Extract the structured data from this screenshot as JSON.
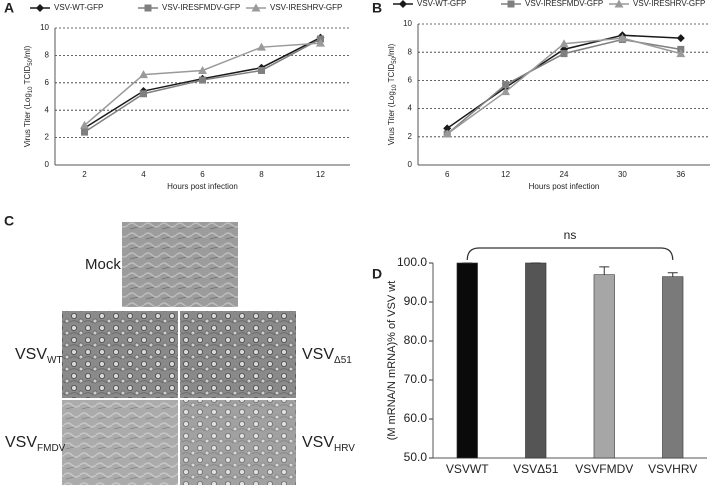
{
  "panel_labels": [
    "A",
    "B",
    "C",
    "D"
  ],
  "micrographs": [
    {
      "base": "Mock"
    },
    {
      "base": "VSV",
      "sub": "WT"
    },
    {
      "base": "VSV",
      "sub": "Δ51"
    },
    {
      "base": "VSV",
      "sub": "FMDV"
    },
    {
      "base": "VSV",
      "sub": "HRV"
    }
  ],
  "chart_data": [
    {
      "type": "line",
      "categories": [
        "2",
        "4",
        "6",
        "8",
        "12"
      ],
      "series": [
        {
          "name": "VSV-WT-GFP",
          "color": "#1a1a1a",
          "marker": "diamond",
          "values": [
            2.7,
            5.4,
            6.3,
            7.1,
            9.3
          ]
        },
        {
          "name": "VSV-IRESFMDV-GFP",
          "color": "#7f7f7f",
          "marker": "square",
          "values": [
            2.4,
            5.2,
            6.2,
            6.9,
            9.2
          ]
        },
        {
          "name": "VSV-IRESHRV-GFP",
          "color": "#9a9a9a",
          "marker": "triangle",
          "values": [
            2.9,
            6.6,
            6.9,
            8.6,
            8.9
          ]
        }
      ],
      "ylim": [
        0,
        10
      ],
      "yticks": [
        0,
        2,
        4,
        6,
        8,
        10
      ],
      "grid": true,
      "xlabel": "Hours post infection",
      "ylabel_parts": [
        "Virus Titer (Log",
        "10",
        " TCID",
        "50",
        "/ml)"
      ]
    },
    {
      "type": "line",
      "categories": [
        "6",
        "12",
        "24",
        "30",
        "36"
      ],
      "series": [
        {
          "name": "VSV-WT-GFP",
          "color": "#1a1a1a",
          "marker": "diamond",
          "values": [
            2.6,
            5.5,
            8.2,
            9.2,
            9.0
          ]
        },
        {
          "name": "VSV-IRESFMDV-GFP",
          "color": "#7f7f7f",
          "marker": "square",
          "values": [
            2.2,
            5.7,
            7.9,
            8.9,
            8.2
          ]
        },
        {
          "name": "VSV-IRESHRV-GFP",
          "color": "#9a9a9a",
          "marker": "triangle",
          "values": [
            2.2,
            5.2,
            8.6,
            9.0,
            7.9
          ]
        }
      ],
      "ylim": [
        0,
        10
      ],
      "yticks": [
        0,
        2,
        4,
        6,
        8,
        10
      ],
      "grid": true,
      "xlabel": "Hours post infection",
      "ylabel_parts": [
        "Virus Titer (Log",
        "10",
        " TCID",
        "50",
        "/ml)"
      ]
    },
    {
      "type": "bar",
      "categories": [
        "VSVWT",
        "VSVΔ51",
        "VSVFMDV",
        "VSVHRV"
      ],
      "values": [
        100,
        100,
        97,
        96.5
      ],
      "errors": [
        0,
        0,
        2,
        1
      ],
      "colors": [
        "#0a0a0a",
        "#555555",
        "#a6a6a6",
        "#7a7a7a"
      ],
      "ylim": [
        50,
        100
      ],
      "yticks": [
        {
          "value": 50,
          "label": "50.0"
        },
        {
          "value": 60,
          "label": "60.0"
        },
        {
          "value": 70,
          "label": "70.0"
        },
        {
          "value": 80,
          "label": "80.0"
        },
        {
          "value": 90,
          "label": "90.0"
        },
        {
          "value": 100,
          "label": "100.0"
        }
      ],
      "grid": false,
      "ylabel": "(M mRNA/N mRNA)% of VSV wt",
      "annotation": "ns"
    }
  ]
}
